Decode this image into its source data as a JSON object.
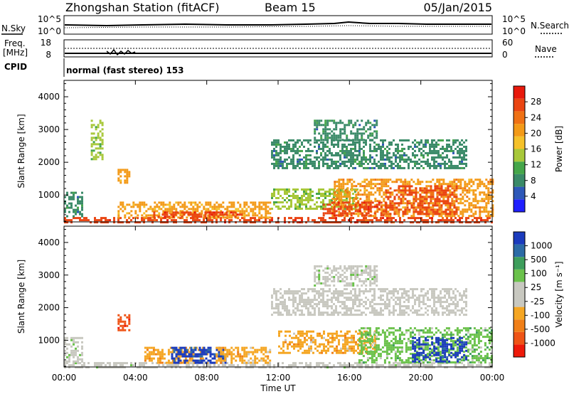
{
  "header": {
    "station": "Zhongshan Station (fitACF)",
    "beam": "Beam 15",
    "date": "05/Jan/2015"
  },
  "strips": {
    "nsky_label": "N.Sky",
    "nsky_ticks": [
      "10^5",
      "10^0"
    ],
    "nsearch_label": "N.Search",
    "nsearch_ticks": [
      "10^5",
      "10^0"
    ],
    "freq_label": "Freq.",
    "freq_unit": "[MHz]",
    "freq_ticks": [
      "18",
      "8"
    ],
    "nave_label": "Nave",
    "nave_ticks": [
      "60",
      "0"
    ],
    "cpid_label": "CPID",
    "cpid_text": "normal (fast stereo) 153"
  },
  "colors": {
    "power": [
      "#1f1fff",
      "#2e58b8",
      "#3a8a68",
      "#45a64a",
      "#a8c83a",
      "#f5c12a",
      "#f39a18",
      "#ef7115",
      "#ea4512",
      "#e8190c"
    ],
    "velocity": [
      "#ee1a0a",
      "#ef5416",
      "#f07f18",
      "#f5a623",
      "#c8c8c0",
      "#c8c8c0",
      "#6bc24b",
      "#3e9e5c",
      "#2c6ba6",
      "#1b3bbd"
    ]
  },
  "chart_data": [
    {
      "type": "heatmap",
      "title": "Power",
      "ylabel": "Slant Range [km]",
      "xlabel": "Time UT",
      "x_ticks": [
        "00:00",
        "04:00",
        "08:00",
        "12:00",
        "16:00",
        "20:00",
        "00:00"
      ],
      "y_ticks": [
        1000,
        2000,
        3000,
        4000
      ],
      "ylim": [
        180,
        4500
      ],
      "colorbar": {
        "label": "Power [dB]",
        "ticks": [
          "4",
          "8",
          "12",
          "16",
          "20",
          "24",
          "28"
        ],
        "range": [
          0,
          30
        ]
      },
      "regions": [
        {
          "t0": 0.0,
          "t1": 24.0,
          "r0": 180,
          "r1": 330,
          "v": 26
        },
        {
          "t0": 0.0,
          "t1": 1.0,
          "r0": 330,
          "r1": 1100,
          "v": 8
        },
        {
          "t0": 1.5,
          "t1": 2.2,
          "r0": 2100,
          "r1": 3300,
          "v": 12
        },
        {
          "t0": 3.0,
          "t1": 3.6,
          "r0": 1300,
          "r1": 1800,
          "v": 18
        },
        {
          "t0": 3.0,
          "t1": 11.5,
          "r0": 330,
          "r1": 800,
          "v": 18
        },
        {
          "t0": 5.0,
          "t1": 10.0,
          "r0": 330,
          "r1": 500,
          "v": 26
        },
        {
          "t0": 11.6,
          "t1": 22.5,
          "r0": 1800,
          "r1": 2700,
          "v": 8
        },
        {
          "t0": 11.6,
          "t1": 16.5,
          "r0": 600,
          "r1": 1200,
          "v": 12
        },
        {
          "t0": 15.0,
          "t1": 24.0,
          "r0": 330,
          "r1": 1500,
          "v": 20
        },
        {
          "t0": 14.5,
          "t1": 18.0,
          "r0": 400,
          "r1": 800,
          "v": 26
        },
        {
          "t0": 18.0,
          "t1": 22.0,
          "r0": 400,
          "r1": 1300,
          "v": 24
        },
        {
          "t0": 14.0,
          "t1": 17.5,
          "r0": 2700,
          "r1": 3300,
          "v": 8
        }
      ]
    },
    {
      "type": "heatmap",
      "title": "Velocity",
      "ylabel": "Slant Range [km]",
      "xlabel": "Time UT",
      "x_ticks": [
        "00:00",
        "04:00",
        "08:00",
        "12:00",
        "16:00",
        "20:00",
        "00:00"
      ],
      "y_ticks": [
        1000,
        2000,
        3000,
        4000
      ],
      "ylim": [
        180,
        4500
      ],
      "colorbar": {
        "label": "Velocity [m s⁻¹]",
        "ticks": [
          "1000",
          "500",
          "100",
          "25",
          "-25",
          "-100",
          "-500",
          "-1000"
        ],
        "range": [
          -1000,
          1000
        ]
      },
      "regions": [
        {
          "t0": 0.0,
          "t1": 24.0,
          "r0": 180,
          "r1": 330,
          "v": 50
        },
        {
          "t0": 0.0,
          "t1": 1.0,
          "r0": 330,
          "r1": 1100,
          "v": 150
        },
        {
          "t0": 3.0,
          "t1": 3.6,
          "r0": 1300,
          "r1": 1800,
          "v": -800
        },
        {
          "t0": 4.5,
          "t1": 8.0,
          "r0": 330,
          "r1": 800,
          "v": -400
        },
        {
          "t0": 6.0,
          "t1": 9.0,
          "r0": 330,
          "r1": 800,
          "v": 800
        },
        {
          "t0": 8.5,
          "t1": 11.5,
          "r0": 330,
          "r1": 800,
          "v": -300
        },
        {
          "t0": 11.6,
          "t1": 22.5,
          "r0": 1800,
          "r1": 2600,
          "v": 0
        },
        {
          "t0": 12.0,
          "t1": 17.5,
          "r0": 600,
          "r1": 1300,
          "v": -300
        },
        {
          "t0": 16.5,
          "t1": 24.0,
          "r0": 330,
          "r1": 1400,
          "v": 300
        },
        {
          "t0": 19.5,
          "t1": 22.5,
          "r0": 330,
          "r1": 1100,
          "v": 900
        },
        {
          "t0": 14.0,
          "t1": 17.5,
          "r0": 2700,
          "r1": 3300,
          "v": 150
        }
      ]
    }
  ]
}
